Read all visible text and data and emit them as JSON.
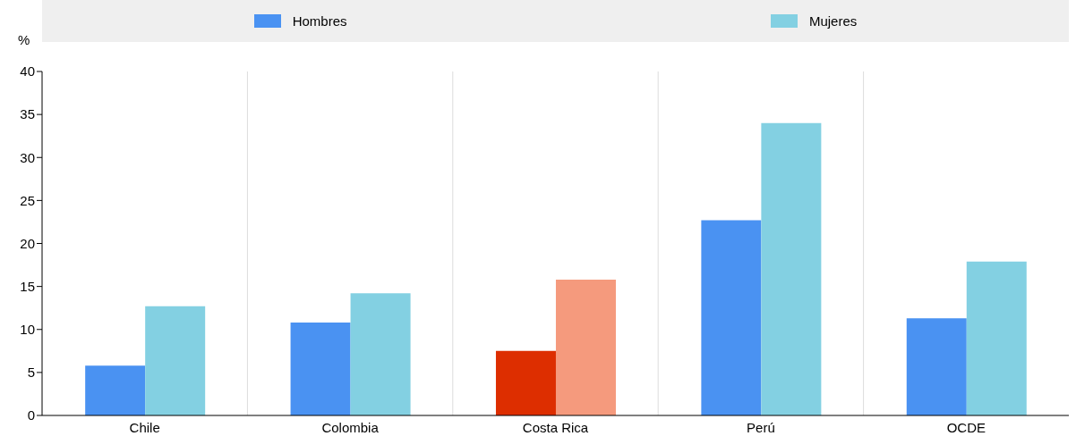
{
  "chart_data": {
    "type": "bar",
    "ylabel": "%",
    "categories": [
      "Chile",
      "Colombia",
      "Costa Rica",
      "Perú",
      "OCDE"
    ],
    "series": [
      {
        "name": "Hombres",
        "color": "#4a92f2",
        "colors": [
          "#4a92f2",
          "#4a92f2",
          "#dd2e00",
          "#4a92f2",
          "#4a92f2"
        ],
        "values": [
          5.8,
          10.8,
          7.5,
          22.7,
          11.3
        ]
      },
      {
        "name": "Mujeres",
        "color": "#83d0e2",
        "colors": [
          "#83d0e2",
          "#83d0e2",
          "#f59a7d",
          "#83d0e2",
          "#83d0e2"
        ],
        "values": [
          12.7,
          14.2,
          15.8,
          34,
          17.9
        ]
      }
    ],
    "ylim": [
      0,
      40
    ],
    "yticks": [
      0,
      5,
      10,
      15,
      20,
      25,
      30,
      35,
      40
    ],
    "grid": "x",
    "legend": "top"
  }
}
